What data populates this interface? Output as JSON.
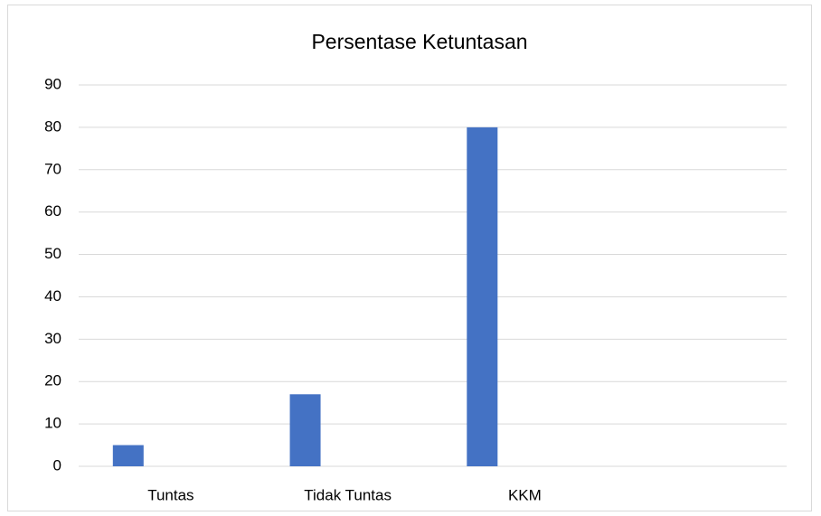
{
  "chart_data": {
    "type": "bar",
    "title": "Persentase Ketuntasan",
    "categories": [
      "Tuntas",
      "Tidak Tuntas",
      "KKM",
      null
    ],
    "values": [
      5,
      17,
      80,
      null
    ],
    "color": "#4472c4",
    "ylim": [
      0,
      90
    ],
    "yticks": [
      0,
      10,
      20,
      30,
      40,
      50,
      60,
      70,
      80,
      90
    ],
    "grid": true
  }
}
